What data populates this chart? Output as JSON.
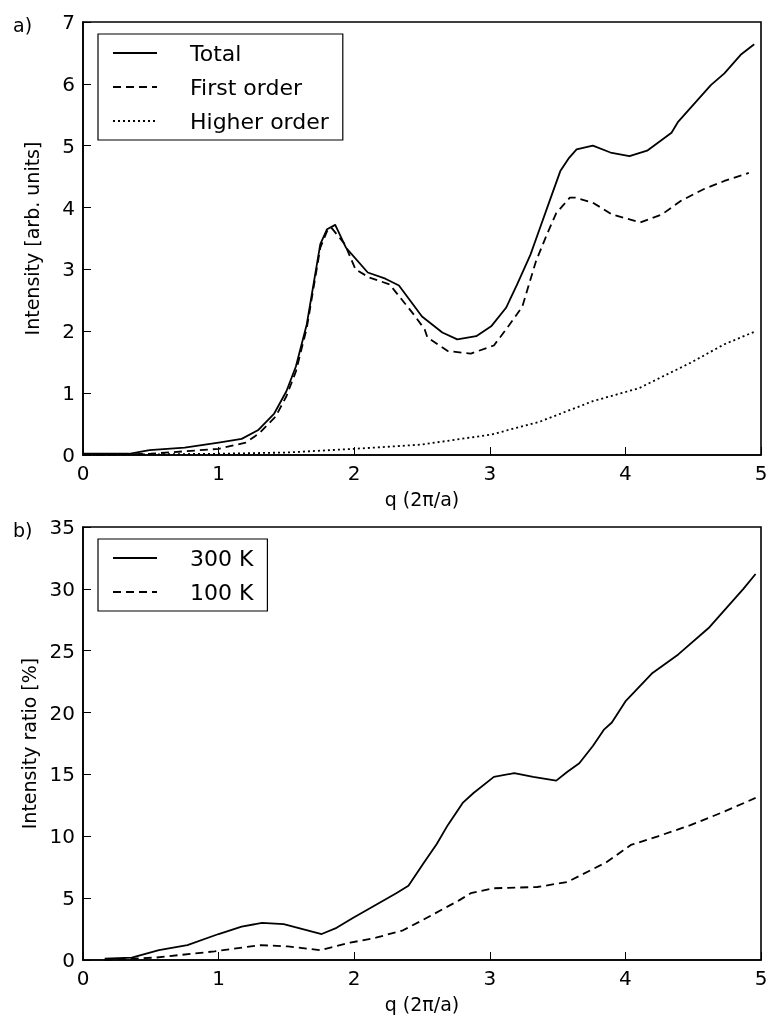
{
  "chart_data": [
    {
      "type": "line",
      "title": "a)",
      "xlabel": "q (2π/a)",
      "ylabel": "Intensity [arb. units]",
      "xlim": [
        0,
        5
      ],
      "ylim": [
        0,
        7
      ],
      "xticks": [
        0,
        1,
        2,
        3,
        4,
        5
      ],
      "yticks": [
        0,
        1,
        2,
        3,
        4,
        5,
        6,
        7
      ],
      "grid": false,
      "legend": "top left",
      "marker": "none",
      "series": [
        {
          "name": "Total",
          "color": "#000000",
          "line_style": "solid",
          "x": [
            0,
            0.34,
            0.49,
            0.75,
            1.0,
            1.17,
            1.29,
            1.41,
            1.5,
            1.57,
            1.65,
            1.75,
            1.8,
            1.86,
            1.94,
            2.1,
            2.23,
            2.33,
            2.5,
            2.65,
            2.76,
            2.9,
            3.01,
            3.12,
            3.2,
            3.3,
            3.37,
            3.44,
            3.52,
            3.58,
            3.64,
            3.76,
            3.89,
            4.03,
            4.16,
            4.34,
            4.39,
            4.63,
            4.73,
            4.85,
            4.95
          ],
          "values": [
            0.02,
            0.02,
            0.08,
            0.12,
            0.2,
            0.26,
            0.4,
            0.67,
            1.03,
            1.43,
            2.11,
            3.41,
            3.65,
            3.72,
            3.35,
            2.95,
            2.85,
            2.74,
            2.24,
            1.98,
            1.87,
            1.92,
            2.08,
            2.38,
            2.75,
            3.24,
            3.67,
            4.1,
            4.59,
            4.79,
            4.94,
            5.0,
            4.89,
            4.83,
            4.92,
            5.21,
            5.39,
            5.98,
            6.17,
            6.47,
            6.64
          ]
        },
        {
          "name": "First order",
          "color": "#000000",
          "line_style": "dashed",
          "x": [
            0,
            0.5,
            1.0,
            1.2,
            1.3,
            1.42,
            1.5,
            1.57,
            1.65,
            1.75,
            1.8,
            1.83,
            1.93,
            2.01,
            2.11,
            2.26,
            2.44,
            2.52,
            2.54,
            2.69,
            2.86,
            3.03,
            3.13,
            3.24,
            3.34,
            3.42,
            3.49,
            3.59,
            3.63,
            3.76,
            3.9,
            4.11,
            4.27,
            4.41,
            4.58,
            4.73,
            4.91
          ],
          "values": [
            0,
            0.02,
            0.1,
            0.2,
            0.35,
            0.62,
            0.95,
            1.35,
            2.05,
            3.35,
            3.62,
            3.68,
            3.41,
            3.0,
            2.87,
            2.76,
            2.27,
            2.03,
            1.9,
            1.68,
            1.64,
            1.77,
            2.06,
            2.4,
            3.13,
            3.56,
            3.91,
            4.16,
            4.16,
            4.08,
            3.89,
            3.76,
            3.89,
            4.11,
            4.3,
            4.43,
            4.56
          ]
        },
        {
          "name": "Higher order",
          "color": "#000000",
          "line_style": "dotted",
          "x": [
            0,
            1.0,
            1.5,
            2.0,
            2.3,
            2.5,
            3.01,
            3.37,
            3.76,
            4.1,
            4.48,
            4.73,
            4.96
          ],
          "values": [
            0,
            0.02,
            0.04,
            0.1,
            0.14,
            0.17,
            0.33,
            0.54,
            0.87,
            1.08,
            1.49,
            1.79,
            2.0
          ]
        }
      ]
    },
    {
      "type": "line",
      "title": "b)",
      "xlabel": "q (2π/a)",
      "ylabel": "Intensity ratio [%]",
      "xlim": [
        0,
        5
      ],
      "ylim": [
        0,
        35
      ],
      "xticks": [
        0,
        1,
        2,
        3,
        4,
        5
      ],
      "yticks": [
        0,
        5,
        10,
        15,
        20,
        25,
        30,
        35
      ],
      "grid": false,
      "legend": "top left",
      "marker": "none",
      "series": [
        {
          "name": "300 K",
          "color": "#000000",
          "line_style": "solid",
          "x": [
            0.16,
            0.36,
            0.56,
            0.77,
            1.0,
            1.17,
            1.32,
            1.48,
            1.76,
            1.87,
            1.99,
            2.31,
            2.4,
            2.51,
            2.61,
            2.69,
            2.8,
            2.88,
            3.03,
            3.18,
            3.32,
            3.49,
            3.57,
            3.66,
            3.76,
            3.84,
            3.9,
            4.0,
            4.2,
            4.39,
            4.62,
            4.87,
            4.96
          ],
          "values": [
            0.1,
            0.2,
            0.8,
            1.2,
            2.1,
            2.7,
            3.0,
            2.9,
            2.1,
            2.6,
            3.4,
            5.4,
            6.0,
            7.8,
            9.4,
            10.9,
            12.7,
            13.5,
            14.8,
            15.1,
            14.8,
            14.5,
            15.2,
            15.9,
            17.3,
            18.6,
            19.2,
            20.9,
            23.2,
            24.7,
            26.9,
            30.0,
            31.2
          ]
        },
        {
          "name": "100 K",
          "color": "#000000",
          "line_style": "dashed",
          "x": [
            0.16,
            0.54,
            0.97,
            1.31,
            1.51,
            1.75,
            1.97,
            2.16,
            2.36,
            2.5,
            2.77,
            2.86,
            3.03,
            3.35,
            3.57,
            3.86,
            4.04,
            4.24,
            4.48,
            4.73,
            4.96
          ],
          "values": [
            0,
            0.2,
            0.7,
            1.2,
            1.1,
            0.8,
            1.4,
            1.8,
            2.4,
            3.2,
            4.8,
            5.4,
            5.8,
            5.9,
            6.3,
            7.9,
            9.3,
            10.0,
            10.9,
            12.0,
            13.1
          ]
        }
      ]
    }
  ]
}
